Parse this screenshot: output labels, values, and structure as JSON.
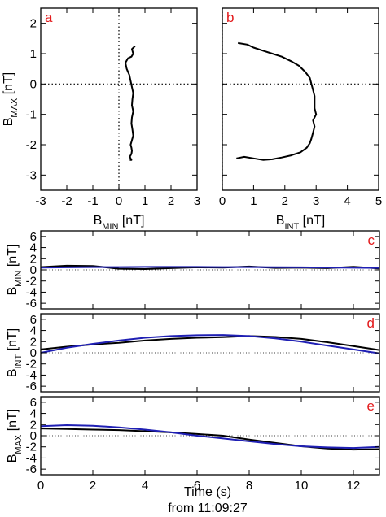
{
  "figure": {
    "xlabel_time": "Time (s)",
    "footer": "from 11:09:27"
  },
  "chart_data": [
    {
      "id": "a",
      "type": "line",
      "panel_label": "a",
      "xlabel": {
        "main": "B",
        "sub": "MIN",
        "unit": " [nT]"
      },
      "ylabel": {
        "main": "B",
        "sub": "MAX",
        "unit": " [nT]"
      },
      "xlim": [
        -3,
        3
      ],
      "ylim": [
        -3.5,
        2.5
      ],
      "xticks": [
        -3,
        -2,
        -1,
        0,
        1,
        2,
        3
      ],
      "yticks": [
        -3,
        -2,
        -1,
        0,
        1,
        2
      ],
      "zero_lines": true,
      "series": [
        {
          "color": "#000000",
          "x": [
            0.62,
            0.5,
            0.55,
            0.48,
            0.35,
            0.25,
            0.3,
            0.4,
            0.45,
            0.5,
            0.55,
            0.52,
            0.5,
            0.55,
            0.5,
            0.48,
            0.52,
            0.55,
            0.5,
            0.45,
            0.48,
            0.5,
            0.48,
            0.42,
            0.45,
            0.48,
            0.42
          ],
          "y": [
            1.25,
            1.15,
            1.0,
            0.9,
            0.85,
            0.7,
            0.5,
            0.3,
            0.1,
            -0.1,
            -0.3,
            -0.5,
            -0.7,
            -0.9,
            -1.1,
            -1.3,
            -1.5,
            -1.7,
            -1.85,
            -2.0,
            -2.1,
            -2.2,
            -2.3,
            -2.4,
            -2.45,
            -2.5,
            -2.5
          ]
        }
      ]
    },
    {
      "id": "b",
      "type": "line",
      "panel_label": "b",
      "xlabel": {
        "main": "B",
        "sub": "INT",
        "unit": " [nT]"
      },
      "ylabel": null,
      "xlim": [
        0,
        5
      ],
      "ylim": [
        -3.5,
        2.5
      ],
      "xticks": [
        0,
        1,
        2,
        3,
        4,
        5
      ],
      "yticks": [
        -3,
        -2,
        -1,
        0,
        1,
        2
      ],
      "zero_lines": true,
      "series": [
        {
          "color": "#000000",
          "x": [
            0.5,
            0.8,
            1.0,
            1.3,
            1.6,
            1.9,
            2.2,
            2.45,
            2.65,
            2.8,
            2.85,
            2.9,
            2.95,
            2.95,
            2.95,
            3.0,
            2.9,
            2.95,
            2.9,
            2.85,
            2.8,
            2.7,
            2.5,
            2.2,
            1.9,
            1.6,
            1.3,
            1.0,
            0.7,
            0.45
          ],
          "y": [
            1.35,
            1.3,
            1.2,
            1.1,
            1.0,
            0.9,
            0.75,
            0.6,
            0.4,
            0.2,
            0.0,
            -0.2,
            -0.4,
            -0.6,
            -0.8,
            -1.0,
            -1.2,
            -1.4,
            -1.6,
            -1.8,
            -1.95,
            -2.1,
            -2.25,
            -2.35,
            -2.42,
            -2.48,
            -2.5,
            -2.45,
            -2.4,
            -2.45
          ]
        }
      ]
    },
    {
      "id": "c",
      "type": "line",
      "panel_label": "c",
      "ylabel": {
        "main": "B",
        "sub": "MIN",
        "unit": " [nT]"
      },
      "xlim": [
        0,
        13
      ],
      "ylim": [
        -7,
        7
      ],
      "xticks": [
        0,
        2,
        4,
        6,
        8,
        10,
        12
      ],
      "yticks": [
        -6,
        -4,
        -2,
        0,
        2,
        4,
        6
      ],
      "show_xtick_labels": false,
      "series": [
        {
          "color": "#000000",
          "x": [
            0,
            1,
            2,
            3,
            4,
            5,
            6,
            7,
            8,
            9,
            10,
            11,
            12,
            13
          ],
          "y": [
            0.5,
            0.75,
            0.7,
            0.2,
            0.15,
            0.3,
            0.45,
            0.4,
            0.6,
            0.35,
            0.4,
            0.3,
            0.55,
            0.25
          ]
        },
        {
          "color": "#1f1fb4",
          "x": [
            0,
            1,
            2,
            3,
            4,
            5,
            6,
            7,
            8,
            9,
            10,
            11,
            12,
            13
          ],
          "y": [
            0.4,
            0.45,
            0.5,
            0.5,
            0.52,
            0.52,
            0.52,
            0.5,
            0.5,
            0.48,
            0.45,
            0.42,
            0.38,
            0.35
          ]
        }
      ]
    },
    {
      "id": "d",
      "type": "line",
      "panel_label": "d",
      "ylabel": {
        "main": "B",
        "sub": "INT",
        "unit": " [nT]"
      },
      "xlim": [
        0,
        13
      ],
      "ylim": [
        -7,
        7
      ],
      "xticks": [
        0,
        2,
        4,
        6,
        8,
        10,
        12
      ],
      "yticks": [
        -6,
        -4,
        -2,
        0,
        2,
        4,
        6
      ],
      "show_xtick_labels": false,
      "series": [
        {
          "color": "#000000",
          "x": [
            0,
            1,
            2,
            3,
            4,
            5,
            6,
            7,
            8,
            9,
            10,
            11,
            12,
            13
          ],
          "y": [
            0.6,
            1.1,
            1.5,
            1.8,
            2.2,
            2.5,
            2.7,
            2.8,
            3.0,
            2.85,
            2.5,
            1.9,
            1.2,
            0.5
          ]
        },
        {
          "color": "#1f1fb4",
          "x": [
            0,
            1,
            2,
            3,
            4,
            5,
            6,
            7,
            8,
            9,
            10,
            11,
            12,
            13
          ],
          "y": [
            0.0,
            0.9,
            1.6,
            2.2,
            2.7,
            3.0,
            3.15,
            3.2,
            3.0,
            2.6,
            2.0,
            1.3,
            0.6,
            -0.1
          ]
        }
      ]
    },
    {
      "id": "e",
      "type": "line",
      "panel_label": "e",
      "ylabel": {
        "main": "B",
        "sub": "MAX",
        "unit": " [nT]"
      },
      "xlim": [
        0,
        13
      ],
      "ylim": [
        -7,
        7
      ],
      "xticks": [
        0,
        2,
        4,
        6,
        8,
        10,
        12
      ],
      "yticks": [
        -6,
        -4,
        -2,
        0,
        2,
        4,
        6
      ],
      "show_xtick_labels": true,
      "series": [
        {
          "color": "#000000",
          "x": [
            0,
            1,
            2,
            3,
            4,
            5,
            6,
            7,
            8,
            9,
            10,
            11,
            12,
            13
          ],
          "y": [
            1.3,
            1.2,
            1.1,
            1.0,
            0.8,
            0.6,
            0.3,
            0.0,
            -0.7,
            -1.3,
            -1.9,
            -2.3,
            -2.5,
            -2.4
          ]
        },
        {
          "color": "#1f1fb4",
          "x": [
            0,
            1,
            2,
            3,
            4,
            5,
            6,
            7,
            8,
            9,
            10,
            11,
            12,
            13
          ],
          "y": [
            1.7,
            1.9,
            1.8,
            1.5,
            1.1,
            0.6,
            0.0,
            -0.5,
            -1.0,
            -1.5,
            -1.9,
            -2.1,
            -2.2,
            -2.0
          ]
        }
      ]
    }
  ]
}
